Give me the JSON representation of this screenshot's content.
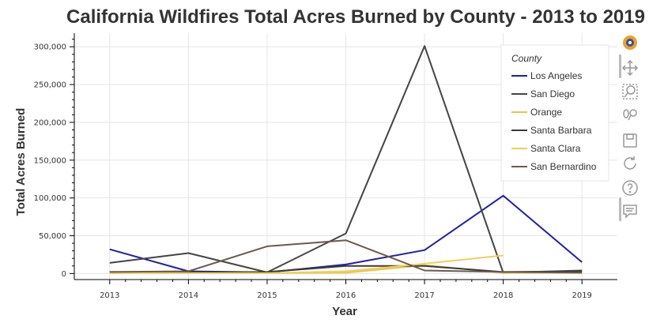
{
  "chart_data": {
    "type": "line",
    "title": "California Wildfires Total Acres Burned by County - 2013 to 2019",
    "xlabel": "Year",
    "ylabel": "Total Acres Burned",
    "x": [
      2013,
      2014,
      2015,
      2016,
      2017,
      2018,
      2019
    ],
    "xlim": [
      2012.55,
      2019.45
    ],
    "ylim": [
      -8000,
      318000
    ],
    "yticks": [
      0,
      50000,
      100000,
      150000,
      200000,
      250000,
      300000
    ],
    "ytick_labels": [
      "0",
      "50,000",
      "100,000",
      "150,000",
      "200,000",
      "250,000",
      "300,000"
    ],
    "xticks": [
      2013,
      2014,
      2015,
      2016,
      2017,
      2018,
      2019
    ],
    "xtick_labels": [
      "2013",
      "2014",
      "2015",
      "2016",
      "2017",
      "2018",
      "2019"
    ],
    "grid": true,
    "legend": {
      "title": "County",
      "placement": "top-right"
    },
    "series": [
      {
        "name": "Los Angeles",
        "color": "#1f1fa8",
        "x": [
          2013,
          2014,
          2015,
          2016,
          2017,
          2018,
          2019
        ],
        "values": [
          32000,
          3000,
          1500,
          12000,
          31000,
          103000,
          15000
        ]
      },
      {
        "name": "San Diego",
        "color": "#444444",
        "x": [
          2013,
          2014,
          2015,
          2016,
          2017,
          2018,
          2019
        ],
        "values": [
          14000,
          27000,
          1500,
          53000,
          301000,
          1000,
          4000
        ]
      },
      {
        "name": "Orange",
        "color": "#e8c547",
        "x": [
          2013,
          2014,
          2015,
          2016,
          2017,
          2018,
          2019
        ],
        "values": [
          500,
          800,
          500,
          1000,
          11000,
          1000,
          1000
        ]
      },
      {
        "name": "Santa Barbara",
        "color": "#3a3a3a",
        "x": [
          2013,
          2014,
          2015,
          2016,
          2017,
          2018,
          2019
        ],
        "values": [
          2000,
          1500,
          2000,
          10000,
          10000,
          2000,
          3000
        ]
      },
      {
        "name": "Santa Clara",
        "color": "#f0cf5a",
        "x": [
          2013,
          2014,
          2015,
          2016,
          2017,
          2018
        ],
        "values": [
          1000,
          500,
          500,
          3000,
          13000,
          24000
        ]
      },
      {
        "name": "San Bernardino",
        "color": "#6b5a4e",
        "x": [
          2013,
          2014,
          2015,
          2016,
          2017,
          2018,
          2019
        ],
        "values": [
          2000,
          3000,
          36000,
          44000,
          4000,
          2000,
          1000
        ]
      }
    ]
  },
  "toolbar": {
    "tools": [
      {
        "name": "bokeh-logo-icon"
      },
      {
        "name": "pan-icon"
      },
      {
        "name": "box-zoom-icon"
      },
      {
        "name": "wheel-zoom-icon"
      },
      {
        "name": "save-icon"
      },
      {
        "name": "reset-icon"
      },
      {
        "name": "help-icon"
      },
      {
        "name": "hover-icon"
      }
    ]
  }
}
